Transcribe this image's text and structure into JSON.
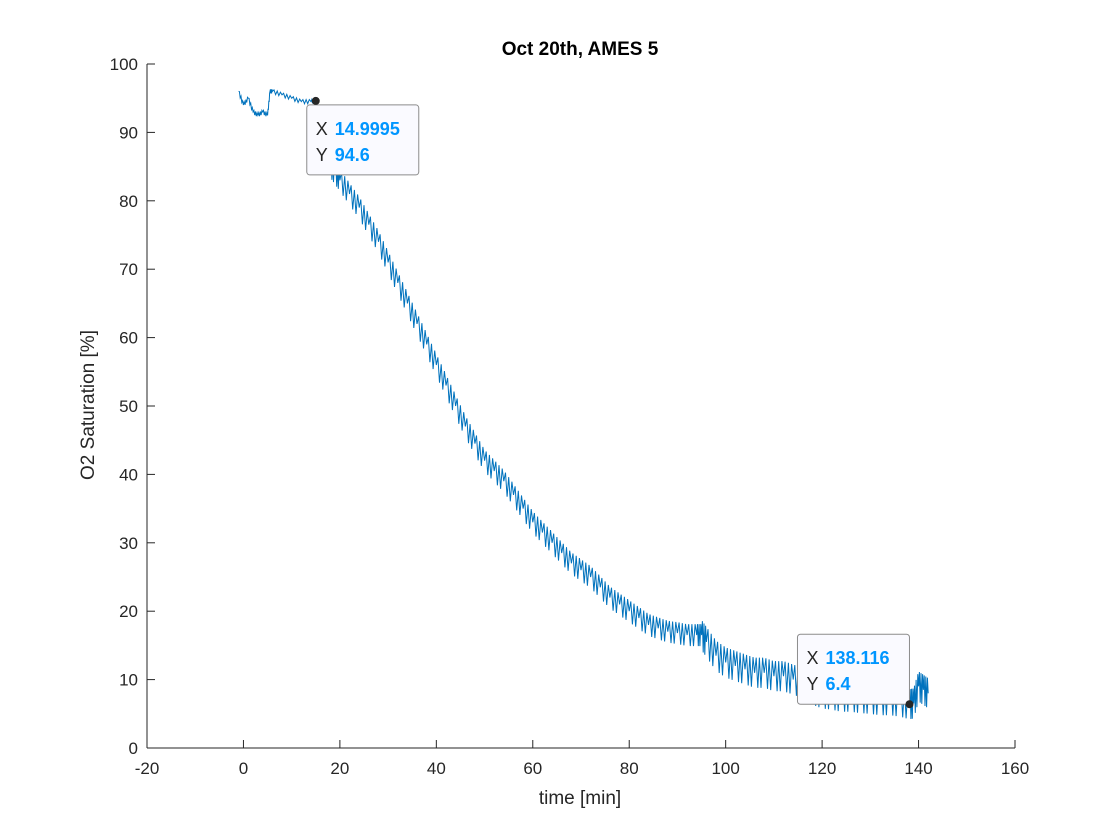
{
  "chart_data": {
    "type": "line",
    "title": "Oct 20th, AMES 5",
    "xlabel": "time [min]",
    "ylabel": "O2 Saturation [%]",
    "xlim": [
      -20,
      160
    ],
    "ylim": [
      0,
      100
    ],
    "xticks": [
      "-20",
      "0",
      "20",
      "40",
      "60",
      "80",
      "100",
      "120",
      "140",
      "160"
    ],
    "yticks": [
      "0",
      "10",
      "20",
      "30",
      "40",
      "50",
      "60",
      "70",
      "80",
      "90",
      "100"
    ],
    "grid": false,
    "series": [
      {
        "color": "#0072BD",
        "x": [
          -1,
          0,
          1,
          2,
          3,
          4,
          5,
          5.5,
          6,
          8,
          10,
          12,
          14,
          15,
          16,
          17,
          18,
          19,
          20,
          22,
          24,
          26,
          28,
          30,
          32,
          34,
          36,
          38,
          40,
          42,
          44,
          46,
          48,
          50,
          52,
          54,
          56,
          58,
          60,
          62,
          64,
          66,
          68,
          70,
          72,
          74,
          76,
          78,
          80,
          82,
          84,
          86,
          88,
          90,
          92,
          94,
          95,
          96,
          98,
          100,
          102,
          104,
          106,
          108,
          110,
          112,
          114,
          116,
          118,
          120,
          122,
          124,
          126,
          128,
          130,
          132,
          134,
          136,
          138.116,
          139,
          140,
          141,
          142
        ],
        "y": [
          96,
          94,
          95,
          93,
          92.5,
          93,
          92.5,
          96,
          96,
          95.5,
          95,
          94.5,
          94.5,
          94.6,
          92,
          88,
          85,
          84,
          83,
          81,
          79,
          76.5,
          74,
          71,
          68,
          65,
          62,
          59,
          56,
          53,
          50,
          47,
          44.5,
          42,
          40.5,
          39,
          37,
          35,
          33,
          31.5,
          30,
          28.5,
          27,
          26,
          25,
          23.5,
          22,
          21,
          20,
          19,
          18,
          17.5,
          17,
          16.8,
          16.5,
          16.5,
          16.5,
          15.5,
          13.5,
          12.5,
          12,
          11.5,
          11,
          11,
          10.5,
          10.5,
          10,
          9.5,
          8.5,
          8,
          7.8,
          7.5,
          7.5,
          7.3,
          7.2,
          7,
          7,
          6.8,
          6.4,
          6.5,
          9,
          8.5,
          8
        ]
      }
    ],
    "datatips": [
      {
        "x": 14.9995,
        "y": 94.6,
        "x_label": "14.9995",
        "y_label": "94.6",
        "box": "below-right"
      },
      {
        "x": 138.116,
        "y": 6.4,
        "x_label": "138.116",
        "y_label": "6.4",
        "box": "above-left"
      }
    ],
    "datatip_key_x": "X",
    "datatip_key_y": "Y",
    "datatip_value_color": "#0096FF"
  }
}
